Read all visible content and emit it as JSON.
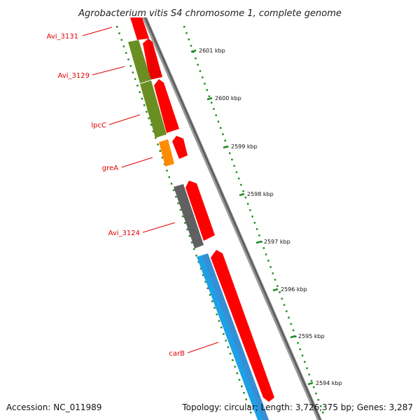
{
  "title": "Agrobacterium vitis S4 chromosome 1, complete genome",
  "footer": {
    "accession": "Accession: NC_011989",
    "summary": "Topology: circular; Length: 3,726,375 bp; Genes: 3,287"
  },
  "ticks": [
    {
      "label": "2601 kbp"
    },
    {
      "label": "2600 kbp"
    },
    {
      "label": "2599 kbp"
    },
    {
      "label": "2598 kbp"
    },
    {
      "label": "2597 kbp"
    },
    {
      "label": "2596 kbp"
    },
    {
      "label": "2595 kbp"
    },
    {
      "label": "2594 kbp"
    }
  ],
  "genes": [
    {
      "name": "Avi_3131",
      "color": "#6b8e23"
    },
    {
      "name": "Avi_3129",
      "color": "#6b8e23"
    },
    {
      "name": "lpcC",
      "color": "#6b8e23"
    },
    {
      "name": "greA",
      "color": "#ff8c00"
    },
    {
      "name": "Avi_3124",
      "color": "#606060"
    },
    {
      "name": "carB",
      "color": "#1ea0e6"
    }
  ],
  "colors": {
    "cds_strand": "#ff0000",
    "backbone": "#808080",
    "ticks": "#228b22",
    "labels": "#e00000"
  }
}
